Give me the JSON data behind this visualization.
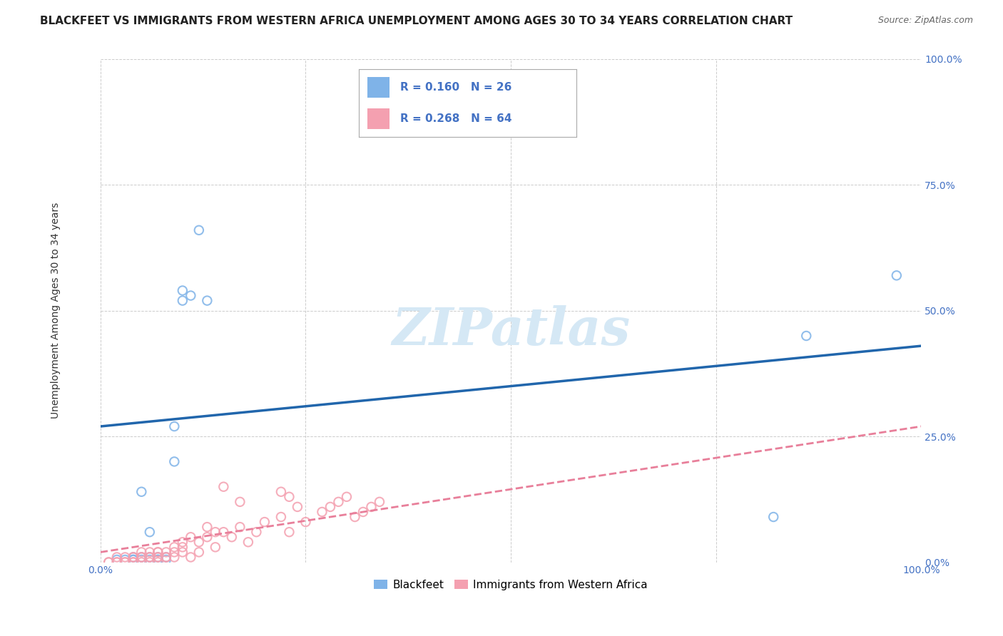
{
  "title": "BLACKFEET VS IMMIGRANTS FROM WESTERN AFRICA UNEMPLOYMENT AMONG AGES 30 TO 34 YEARS CORRELATION CHART",
  "source": "Source: ZipAtlas.com",
  "ylabel": "Unemployment Among Ages 30 to 34 years",
  "xlim": [
    0,
    1
  ],
  "ylim": [
    0,
    1
  ],
  "xticks": [
    0.0,
    0.25,
    0.5,
    0.75,
    1.0
  ],
  "yticks": [
    0.0,
    0.25,
    0.5,
    0.75,
    1.0
  ],
  "xticklabels": [
    "0.0%",
    "",
    "",
    "",
    "100.0%"
  ],
  "yticklabels": [
    "0.0%",
    "25.0%",
    "50.0%",
    "75.0%",
    "100.0%"
  ],
  "blackfeet_color": "#7fb3e8",
  "immigrants_color": "#f4a0b0",
  "blue_line_color": "#2166ac",
  "pink_line_color": "#e87f9a",
  "legend_R_blue": "R = 0.160",
  "legend_N_blue": "N = 26",
  "legend_R_pink": "R = 0.268",
  "legend_N_pink": "N = 64",
  "legend_label_blue": "Blackfeet",
  "legend_label_pink": "Immigrants from Western Africa",
  "watermark": "ZIPatlas",
  "blackfeet_x": [
    0.02,
    0.03,
    0.04,
    0.04,
    0.04,
    0.05,
    0.05,
    0.05,
    0.06,
    0.06,
    0.06,
    0.07,
    0.07,
    0.07,
    0.08,
    0.08,
    0.09,
    0.09,
    0.1,
    0.1,
    0.11,
    0.12,
    0.13,
    0.82,
    0.86,
    0.97
  ],
  "blackfeet_y": [
    0.005,
    0.005,
    0.005,
    0.01,
    0.005,
    0.005,
    0.01,
    0.14,
    0.005,
    0.01,
    0.06,
    0.005,
    0.01,
    0.005,
    0.005,
    0.01,
    0.27,
    0.2,
    0.52,
    0.54,
    0.53,
    0.66,
    0.52,
    0.09,
    0.45,
    0.57
  ],
  "immigrants_x": [
    0.01,
    0.01,
    0.02,
    0.02,
    0.02,
    0.03,
    0.03,
    0.03,
    0.04,
    0.04,
    0.04,
    0.04,
    0.05,
    0.05,
    0.05,
    0.05,
    0.06,
    0.06,
    0.06,
    0.06,
    0.07,
    0.07,
    0.07,
    0.07,
    0.07,
    0.08,
    0.08,
    0.08,
    0.09,
    0.09,
    0.09,
    0.1,
    0.1,
    0.1,
    0.11,
    0.11,
    0.12,
    0.12,
    0.13,
    0.14,
    0.15,
    0.16,
    0.17,
    0.18,
    0.19,
    0.2,
    0.22,
    0.23,
    0.24,
    0.25,
    0.27,
    0.28,
    0.29,
    0.3,
    0.31,
    0.32,
    0.33,
    0.34,
    0.22,
    0.23,
    0.13,
    0.14,
    0.15,
    0.17
  ],
  "immigrants_y": [
    0.0,
    0.0,
    0.0,
    0.0,
    0.01,
    0.0,
    0.0,
    0.01,
    0.0,
    0.0,
    0.01,
    0.01,
    0.0,
    0.01,
    0.01,
    0.02,
    0.0,
    0.01,
    0.01,
    0.02,
    0.0,
    0.01,
    0.01,
    0.02,
    0.02,
    0.01,
    0.01,
    0.02,
    0.01,
    0.02,
    0.03,
    0.02,
    0.03,
    0.04,
    0.01,
    0.05,
    0.02,
    0.04,
    0.05,
    0.03,
    0.06,
    0.05,
    0.07,
    0.04,
    0.06,
    0.08,
    0.09,
    0.06,
    0.11,
    0.08,
    0.1,
    0.11,
    0.12,
    0.13,
    0.09,
    0.1,
    0.11,
    0.12,
    0.14,
    0.13,
    0.07,
    0.06,
    0.15,
    0.12
  ],
  "blue_line_y0": 0.27,
  "blue_line_y1": 0.43,
  "pink_line_y0": 0.02,
  "pink_line_y1": 0.27,
  "title_fontsize": 11,
  "source_fontsize": 9,
  "axis_label_fontsize": 10,
  "tick_fontsize": 10,
  "legend_fontsize": 11,
  "watermark_fontsize": 52,
  "watermark_color": "#d5e8f5",
  "background_color": "#ffffff",
  "grid_color": "#cccccc"
}
